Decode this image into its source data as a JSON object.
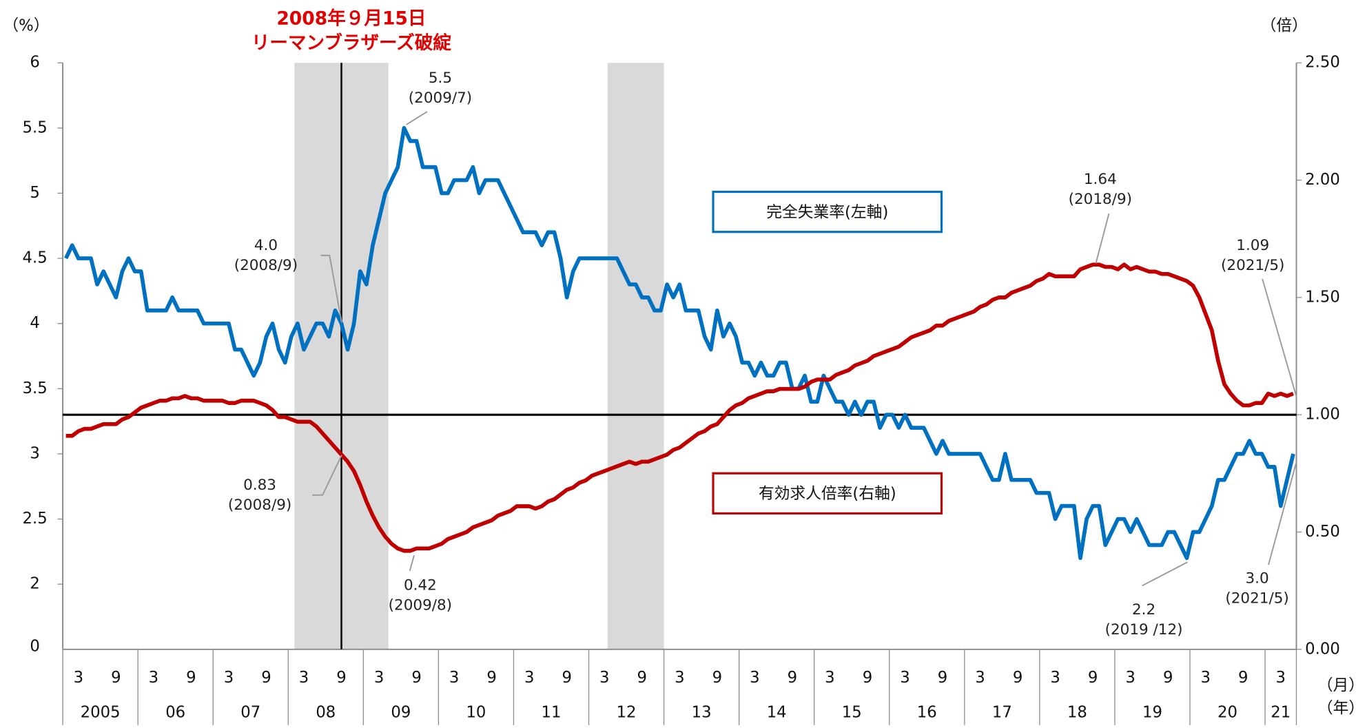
{
  "chart_data": {
    "type": "line",
    "ylabel": "（%）",
    "y2label": "（倍）",
    "month_axis_label": "（月）",
    "year_axis_label": "（年）",
    "ylim": [
      1.5,
      6
    ],
    "yticks": [
      2,
      2.5,
      3,
      3.5,
      4,
      4.5,
      5,
      5.5,
      6
    ],
    "y_axis_bottom_label": "0",
    "y2lim": [
      0,
      2.5
    ],
    "y2ticks": [
      {
        "value": 0,
        "label": "0.00"
      },
      {
        "value": 0.5,
        "label": "0.50"
      },
      {
        "value": 1,
        "label": "1.00"
      },
      {
        "value": 1.5,
        "label": "1.50"
      },
      {
        "value": 2,
        "label": "2.00"
      },
      {
        "value": 2.5,
        "label": "2.50"
      }
    ],
    "reference_line_y2": 1,
    "month_tick_labels": [
      "3",
      "9"
    ],
    "year_labels": [
      "2005",
      "06",
      "07",
      "08",
      "09",
      "10",
      "11",
      "12",
      "13",
      "14",
      "15",
      "16",
      "17",
      "18",
      "19",
      "20",
      "21"
    ],
    "x": [
      "2005-01",
      "2005-02",
      "2005-03",
      "2005-04",
      "2005-05",
      "2005-06",
      "2005-07",
      "2005-08",
      "2005-09",
      "2005-10",
      "2005-11",
      "2005-12",
      "2006-01",
      "2006-02",
      "2006-03",
      "2006-04",
      "2006-05",
      "2006-06",
      "2006-07",
      "2006-08",
      "2006-09",
      "2006-10",
      "2006-11",
      "2006-12",
      "2007-01",
      "2007-02",
      "2007-03",
      "2007-04",
      "2007-05",
      "2007-06",
      "2007-07",
      "2007-08",
      "2007-09",
      "2007-10",
      "2007-11",
      "2007-12",
      "2008-01",
      "2008-02",
      "2008-03",
      "2008-04",
      "2008-05",
      "2008-06",
      "2008-07",
      "2008-08",
      "2008-09",
      "2008-10",
      "2008-11",
      "2008-12",
      "2009-01",
      "2009-02",
      "2009-03",
      "2009-04",
      "2009-05",
      "2009-06",
      "2009-07",
      "2009-08",
      "2009-09",
      "2009-10",
      "2009-11",
      "2009-12",
      "2010-01",
      "2010-02",
      "2010-03",
      "2010-04",
      "2010-05",
      "2010-06",
      "2010-07",
      "2010-08",
      "2010-09",
      "2010-10",
      "2010-11",
      "2010-12",
      "2011-01",
      "2011-02",
      "2011-03",
      "2011-04",
      "2011-05",
      "2011-06",
      "2011-07",
      "2011-08",
      "2011-09",
      "2011-10",
      "2011-11",
      "2011-12",
      "2012-01",
      "2012-02",
      "2012-03",
      "2012-04",
      "2012-05",
      "2012-06",
      "2012-07",
      "2012-08",
      "2012-09",
      "2012-10",
      "2012-11",
      "2012-12",
      "2013-01",
      "2013-02",
      "2013-03",
      "2013-04",
      "2013-05",
      "2013-06",
      "2013-07",
      "2013-08",
      "2013-09",
      "2013-10",
      "2013-11",
      "2013-12",
      "2014-01",
      "2014-02",
      "2014-03",
      "2014-04",
      "2014-05",
      "2014-06",
      "2014-07",
      "2014-08",
      "2014-09",
      "2014-10",
      "2014-11",
      "2014-12",
      "2015-01",
      "2015-02",
      "2015-03",
      "2015-04",
      "2015-05",
      "2015-06",
      "2015-07",
      "2015-08",
      "2015-09",
      "2015-10",
      "2015-11",
      "2015-12",
      "2016-01",
      "2016-02",
      "2016-03",
      "2016-04",
      "2016-05",
      "2016-06",
      "2016-07",
      "2016-08",
      "2016-09",
      "2016-10",
      "2016-11",
      "2016-12",
      "2017-01",
      "2017-02",
      "2017-03",
      "2017-04",
      "2017-05",
      "2017-06",
      "2017-07",
      "2017-08",
      "2017-09",
      "2017-10",
      "2017-11",
      "2017-12",
      "2018-01",
      "2018-02",
      "2018-03",
      "2018-04",
      "2018-05",
      "2018-06",
      "2018-07",
      "2018-08",
      "2018-09",
      "2018-10",
      "2018-11",
      "2018-12",
      "2019-01",
      "2019-02",
      "2019-03",
      "2019-04",
      "2019-05",
      "2019-06",
      "2019-07",
      "2019-08",
      "2019-09",
      "2019-10",
      "2019-11",
      "2019-12",
      "2020-01",
      "2020-02",
      "2020-03",
      "2020-04",
      "2020-05",
      "2020-06",
      "2020-07",
      "2020-08",
      "2020-09",
      "2020-10",
      "2020-11",
      "2020-12",
      "2021-01",
      "2021-02",
      "2021-03",
      "2021-04",
      "2021-05"
    ],
    "series": [
      {
        "name": "完全失業率(左軸)",
        "color": "#0070c0",
        "values": [
          4.5,
          4.6,
          4.5,
          4.5,
          4.5,
          4.3,
          4.4,
          4.3,
          4.2,
          4.4,
          4.5,
          4.4,
          4.4,
          4.1,
          4.1,
          4.1,
          4.1,
          4.2,
          4.1,
          4.1,
          4.1,
          4.1,
          4.0,
          4.0,
          4.0,
          4.0,
          4.0,
          3.8,
          3.8,
          3.7,
          3.6,
          3.7,
          3.9,
          4.0,
          3.8,
          3.7,
          3.9,
          4.0,
          3.8,
          3.9,
          4.0,
          4.0,
          3.9,
          4.1,
          4.0,
          3.8,
          4.0,
          4.4,
          4.3,
          4.6,
          4.8,
          5.0,
          5.1,
          5.2,
          5.5,
          5.4,
          5.4,
          5.2,
          5.2,
          5.2,
          5.0,
          5.0,
          5.1,
          5.1,
          5.1,
          5.2,
          5.0,
          5.1,
          5.1,
          5.1,
          5.0,
          4.9,
          4.8,
          4.7,
          4.7,
          4.7,
          4.6,
          4.7,
          4.7,
          4.5,
          4.2,
          4.4,
          4.5,
          4.5,
          4.5,
          4.5,
          4.5,
          4.5,
          4.5,
          4.4,
          4.3,
          4.3,
          4.2,
          4.2,
          4.1,
          4.1,
          4.3,
          4.2,
          4.3,
          4.1,
          4.1,
          4.1,
          3.9,
          3.8,
          4.1,
          3.9,
          4.0,
          3.9,
          3.7,
          3.7,
          3.6,
          3.7,
          3.6,
          3.6,
          3.7,
          3.7,
          3.5,
          3.5,
          3.6,
          3.4,
          3.4,
          3.6,
          3.5,
          3.4,
          3.4,
          3.3,
          3.4,
          3.3,
          3.4,
          3.4,
          3.2,
          3.3,
          3.3,
          3.2,
          3.3,
          3.2,
          3.2,
          3.2,
          3.1,
          3.0,
          3.1,
          3.0,
          3.0,
          3.0,
          3.0,
          3.0,
          3.0,
          2.9,
          2.8,
          2.8,
          3.0,
          2.8,
          2.8,
          2.8,
          2.8,
          2.7,
          2.7,
          2.7,
          2.5,
          2.6,
          2.6,
          2.6,
          2.2,
          2.5,
          2.6,
          2.6,
          2.3,
          2.4,
          2.5,
          2.5,
          2.4,
          2.5,
          2.4,
          2.3,
          2.3,
          2.3,
          2.4,
          2.4,
          2.3,
          2.2,
          2.4,
          2.4,
          2.5,
          2.6,
          2.8,
          2.8,
          2.9,
          3.0,
          3.0,
          3.1,
          3.0,
          3.0,
          2.9,
          2.9,
          2.6,
          2.8,
          3.0
        ]
      },
      {
        "name": "有効求人倍率(右軸)",
        "color": "#c00000",
        "axis": "y2",
        "values": [
          0.91,
          0.91,
          0.93,
          0.94,
          0.94,
          0.95,
          0.96,
          0.96,
          0.96,
          0.98,
          0.99,
          1.01,
          1.03,
          1.04,
          1.05,
          1.06,
          1.06,
          1.07,
          1.07,
          1.08,
          1.07,
          1.07,
          1.06,
          1.06,
          1.06,
          1.06,
          1.05,
          1.05,
          1.06,
          1.06,
          1.06,
          1.05,
          1.04,
          1.02,
          0.99,
          0.99,
          0.98,
          0.97,
          0.97,
          0.97,
          0.95,
          0.92,
          0.89,
          0.86,
          0.83,
          0.8,
          0.76,
          0.7,
          0.63,
          0.57,
          0.52,
          0.48,
          0.45,
          0.43,
          0.42,
          0.42,
          0.43,
          0.43,
          0.43,
          0.44,
          0.45,
          0.47,
          0.48,
          0.49,
          0.5,
          0.52,
          0.53,
          0.54,
          0.55,
          0.57,
          0.58,
          0.59,
          0.61,
          0.61,
          0.61,
          0.6,
          0.61,
          0.63,
          0.64,
          0.66,
          0.68,
          0.69,
          0.71,
          0.72,
          0.74,
          0.75,
          0.76,
          0.77,
          0.78,
          0.79,
          0.8,
          0.79,
          0.8,
          0.8,
          0.81,
          0.82,
          0.83,
          0.85,
          0.86,
          0.88,
          0.9,
          0.92,
          0.93,
          0.95,
          0.96,
          0.99,
          1.02,
          1.04,
          1.05,
          1.07,
          1.08,
          1.09,
          1.1,
          1.1,
          1.11,
          1.11,
          1.11,
          1.11,
          1.12,
          1.14,
          1.15,
          1.15,
          1.15,
          1.17,
          1.18,
          1.19,
          1.21,
          1.22,
          1.23,
          1.25,
          1.26,
          1.27,
          1.28,
          1.29,
          1.31,
          1.33,
          1.34,
          1.35,
          1.36,
          1.38,
          1.38,
          1.4,
          1.41,
          1.42,
          1.43,
          1.44,
          1.46,
          1.47,
          1.49,
          1.5,
          1.5,
          1.52,
          1.53,
          1.54,
          1.55,
          1.57,
          1.58,
          1.6,
          1.59,
          1.59,
          1.59,
          1.59,
          1.62,
          1.63,
          1.64,
          1.64,
          1.63,
          1.63,
          1.62,
          1.64,
          1.62,
          1.63,
          1.62,
          1.61,
          1.61,
          1.6,
          1.6,
          1.59,
          1.58,
          1.57,
          1.55,
          1.5,
          1.43,
          1.36,
          1.23,
          1.13,
          1.09,
          1.06,
          1.04,
          1.04,
          1.05,
          1.05,
          1.09,
          1.08,
          1.09,
          1.08,
          1.09
        ]
      }
    ],
    "shaded_ranges": [
      {
        "from": "2008-02",
        "to": "2009-04"
      },
      {
        "from": "2012-04",
        "to": "2012-12"
      }
    ],
    "event": {
      "x": "2008-09",
      "date_label": "2008年９月15日",
      "label": "リーマンブラザーズ破綻"
    },
    "annotations": [
      {
        "value": "4.0",
        "date": "(2008/9)"
      },
      {
        "value": "5.5",
        "date": "(2009/7)"
      },
      {
        "value": "0.83",
        "date": "(2008/9)"
      },
      {
        "value": "0.42",
        "date": "(2009/8)"
      },
      {
        "value": "1.64",
        "date": "(2018/9)"
      },
      {
        "value": "1.09",
        "date": "(2021/5)"
      },
      {
        "value": "2.2",
        "date": "(2019 /12)"
      },
      {
        "value": "3.0",
        "date": "(2021/5)"
      }
    ]
  }
}
